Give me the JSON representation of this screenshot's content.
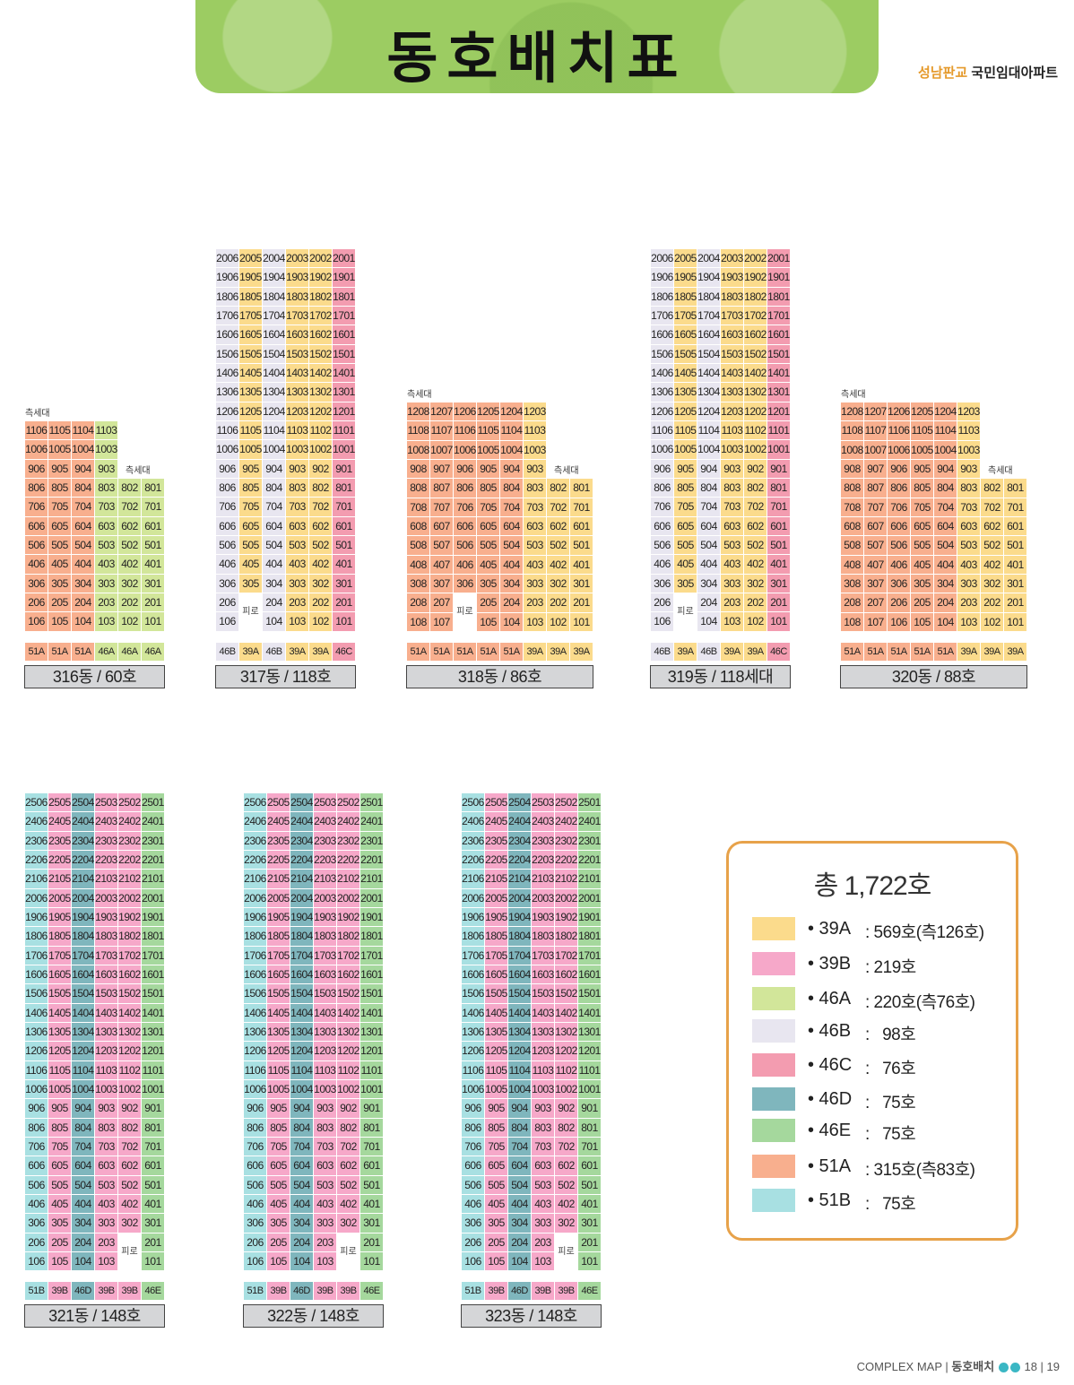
{
  "header": {
    "title": "동호배치표",
    "brand_prefix": "성남판교",
    "brand_suffix": "국민임대아파트"
  },
  "colors": {
    "39A": "#fbdb8c",
    "39B": "#f6a8c9",
    "46A": "#d2e69a",
    "46B": "#e8e6f0",
    "46C": "#f39cb0",
    "46D": "#7fb6bd",
    "46E": "#a5d89d",
    "51A": "#f8af8e",
    "51B": "#a8e0e2"
  },
  "labels": {
    "side_unit": "측세대",
    "piloti": "피로티"
  },
  "buildings": [
    {
      "name": "316동 / 60호",
      "bottom_types": [
        "51A",
        "51A",
        "51A",
        "46A",
        "46A",
        "46A"
      ],
      "column_types": [
        "51A",
        "51A",
        "51A",
        "46A",
        "46A",
        "46A"
      ],
      "rows": [
        [
          "1106",
          "1105",
          "1104",
          "1103",
          "",
          ""
        ],
        [
          "1006",
          "1005",
          "1004",
          "1003",
          "",
          ""
        ],
        [
          "906",
          "905",
          "904",
          "903",
          "",
          ""
        ],
        [
          "806",
          "805",
          "804",
          "803",
          "802",
          "801"
        ],
        [
          "706",
          "705",
          "704",
          "703",
          "702",
          "701"
        ],
        [
          "606",
          "605",
          "604",
          "603",
          "602",
          "601"
        ],
        [
          "506",
          "505",
          "504",
          "503",
          "502",
          "501"
        ],
        [
          "406",
          "405",
          "404",
          "403",
          "402",
          "401"
        ],
        [
          "306",
          "305",
          "304",
          "303",
          "302",
          "301"
        ],
        [
          "206",
          "205",
          "204",
          "203",
          "202",
          "201"
        ],
        [
          "106",
          "105",
          "104",
          "103",
          "102",
          "101"
        ]
      ]
    },
    {
      "name": "317동 / 118호",
      "bottom_types": [
        "46B",
        "39A",
        "46B",
        "39A",
        "39A",
        "46C"
      ],
      "column_types": [
        "46B",
        "39A",
        "46B",
        "39A",
        "39A",
        "46C"
      ],
      "rows": [
        [
          "2006",
          "2005",
          "2004",
          "2003",
          "2002",
          "2001"
        ],
        [
          "1906",
          "1905",
          "1904",
          "1903",
          "1902",
          "1901"
        ],
        [
          "1806",
          "1805",
          "1804",
          "1803",
          "1802",
          "1801"
        ],
        [
          "1706",
          "1705",
          "1704",
          "1703",
          "1702",
          "1701"
        ],
        [
          "1606",
          "1605",
          "1604",
          "1603",
          "1602",
          "1601"
        ],
        [
          "1506",
          "1505",
          "1504",
          "1503",
          "1502",
          "1501"
        ],
        [
          "1406",
          "1405",
          "1404",
          "1403",
          "1402",
          "1401"
        ],
        [
          "1306",
          "1305",
          "1304",
          "1303",
          "1302",
          "1301"
        ],
        [
          "1206",
          "1205",
          "1204",
          "1203",
          "1202",
          "1201"
        ],
        [
          "1106",
          "1105",
          "1104",
          "1103",
          "1102",
          "1101"
        ],
        [
          "1006",
          "1005",
          "1004",
          "1003",
          "1002",
          "1001"
        ],
        [
          "906",
          "905",
          "904",
          "903",
          "902",
          "901"
        ],
        [
          "806",
          "805",
          "804",
          "803",
          "802",
          "801"
        ],
        [
          "706",
          "705",
          "704",
          "703",
          "702",
          "701"
        ],
        [
          "606",
          "605",
          "604",
          "603",
          "602",
          "601"
        ],
        [
          "506",
          "505",
          "504",
          "503",
          "502",
          "501"
        ],
        [
          "406",
          "405",
          "404",
          "403",
          "402",
          "401"
        ],
        [
          "306",
          "305",
          "304",
          "303",
          "302",
          "301"
        ],
        [
          "206",
          "",
          "204",
          "203",
          "202",
          "201"
        ],
        [
          "106",
          "",
          "104",
          "103",
          "102",
          "101"
        ]
      ]
    },
    {
      "name": "318동 / 86호",
      "bottom_types": [
        "51A",
        "51A",
        "51A",
        "51A",
        "51A",
        "39A",
        "39A",
        "39A"
      ],
      "column_types": [
        "51A",
        "51A",
        "51A",
        "51A",
        "51A",
        "39A",
        "39A",
        "39A"
      ],
      "rows": [
        [
          "1208",
          "1207",
          "1206",
          "1205",
          "1204",
          "1203",
          "",
          ""
        ],
        [
          "1108",
          "1107",
          "1106",
          "1105",
          "1104",
          "1103",
          "",
          ""
        ],
        [
          "1008",
          "1007",
          "1006",
          "1005",
          "1004",
          "1003",
          "",
          ""
        ],
        [
          "908",
          "907",
          "906",
          "905",
          "904",
          "903",
          "",
          ""
        ],
        [
          "808",
          "807",
          "806",
          "805",
          "804",
          "803",
          "802",
          "801"
        ],
        [
          "708",
          "707",
          "706",
          "705",
          "704",
          "703",
          "702",
          "701"
        ],
        [
          "608",
          "607",
          "606",
          "605",
          "604",
          "603",
          "602",
          "601"
        ],
        [
          "508",
          "507",
          "506",
          "505",
          "504",
          "503",
          "502",
          "501"
        ],
        [
          "408",
          "407",
          "406",
          "405",
          "404",
          "403",
          "402",
          "401"
        ],
        [
          "308",
          "307",
          "306",
          "305",
          "304",
          "303",
          "302",
          "301"
        ],
        [
          "208",
          "207",
          "",
          "205",
          "204",
          "203",
          "202",
          "201"
        ],
        [
          "108",
          "107",
          "",
          "105",
          "104",
          "103",
          "102",
          "101"
        ]
      ]
    },
    {
      "name": "319동 / 118세대",
      "bottom_types": [
        "46B",
        "39A",
        "46B",
        "39A",
        "39A",
        "46C"
      ],
      "column_types": [
        "46B",
        "39A",
        "46B",
        "39A",
        "39A",
        "46C"
      ],
      "rows": [
        [
          "2006",
          "2005",
          "2004",
          "2003",
          "2002",
          "2001"
        ],
        [
          "1906",
          "1905",
          "1904",
          "1903",
          "1902",
          "1901"
        ],
        [
          "1806",
          "1805",
          "1804",
          "1803",
          "1802",
          "1801"
        ],
        [
          "1706",
          "1705",
          "1704",
          "1703",
          "1702",
          "1701"
        ],
        [
          "1606",
          "1605",
          "1604",
          "1603",
          "1602",
          "1601"
        ],
        [
          "1506",
          "1505",
          "1504",
          "1503",
          "1502",
          "1501"
        ],
        [
          "1406",
          "1405",
          "1404",
          "1403",
          "1402",
          "1401"
        ],
        [
          "1306",
          "1305",
          "1304",
          "1303",
          "1302",
          "1301"
        ],
        [
          "1206",
          "1205",
          "1204",
          "1203",
          "1202",
          "1201"
        ],
        [
          "1106",
          "1105",
          "1104",
          "1103",
          "1102",
          "1101"
        ],
        [
          "1006",
          "1005",
          "1004",
          "1003",
          "1002",
          "1001"
        ],
        [
          "906",
          "905",
          "904",
          "903",
          "902",
          "901"
        ],
        [
          "806",
          "805",
          "804",
          "803",
          "802",
          "801"
        ],
        [
          "706",
          "705",
          "704",
          "703",
          "702",
          "701"
        ],
        [
          "606",
          "605",
          "604",
          "603",
          "602",
          "601"
        ],
        [
          "506",
          "505",
          "504",
          "503",
          "502",
          "501"
        ],
        [
          "406",
          "405",
          "404",
          "403",
          "402",
          "401"
        ],
        [
          "306",
          "305",
          "304",
          "303",
          "302",
          "301"
        ],
        [
          "206",
          "",
          "204",
          "203",
          "202",
          "201"
        ],
        [
          "106",
          "",
          "104",
          "103",
          "102",
          "101"
        ]
      ]
    },
    {
      "name": "320동 / 88호",
      "bottom_types": [
        "51A",
        "51A",
        "51A",
        "51A",
        "51A",
        "39A",
        "39A",
        "39A"
      ],
      "column_types": [
        "51A",
        "51A",
        "51A",
        "51A",
        "51A",
        "39A",
        "39A",
        "39A"
      ],
      "rows": [
        [
          "1208",
          "1207",
          "1206",
          "1205",
          "1204",
          "1203",
          "",
          ""
        ],
        [
          "1108",
          "1107",
          "1106",
          "1105",
          "1104",
          "1103",
          "",
          ""
        ],
        [
          "1008",
          "1007",
          "1006",
          "1005",
          "1004",
          "1003",
          "",
          ""
        ],
        [
          "908",
          "907",
          "906",
          "905",
          "904",
          "903",
          "",
          ""
        ],
        [
          "808",
          "807",
          "806",
          "805",
          "804",
          "803",
          "802",
          "801"
        ],
        [
          "708",
          "707",
          "706",
          "705",
          "704",
          "703",
          "702",
          "701"
        ],
        [
          "608",
          "607",
          "606",
          "605",
          "604",
          "603",
          "602",
          "601"
        ],
        [
          "508",
          "507",
          "506",
          "505",
          "504",
          "503",
          "502",
          "501"
        ],
        [
          "408",
          "407",
          "406",
          "405",
          "404",
          "403",
          "402",
          "401"
        ],
        [
          "308",
          "307",
          "306",
          "305",
          "304",
          "303",
          "302",
          "301"
        ],
        [
          "208",
          "207",
          "206",
          "205",
          "204",
          "203",
          "202",
          "201"
        ],
        [
          "108",
          "107",
          "106",
          "105",
          "104",
          "103",
          "102",
          "101"
        ]
      ]
    },
    {
      "name": "321동 / 148호",
      "bottom_types": [
        "51B",
        "39B",
        "46D",
        "39B",
        "39B",
        "46E"
      ],
      "column_types": [
        "51B",
        "39B",
        "46D",
        "39B",
        "39B",
        "46E"
      ],
      "floors_top": 25
    },
    {
      "name": "322동 / 148호",
      "bottom_types": [
        "51B",
        "39B",
        "46D",
        "39B",
        "39B",
        "46E"
      ],
      "column_types": [
        "51B",
        "39B",
        "46D",
        "39B",
        "39B",
        "46E"
      ],
      "floors_top": 25
    },
    {
      "name": "323동 / 148호",
      "bottom_types": [
        "51B",
        "39B",
        "46D",
        "39B",
        "39B",
        "46E"
      ],
      "column_types": [
        "51B",
        "39B",
        "46D",
        "39B",
        "39B",
        "46E"
      ],
      "floors_top": 25
    }
  ],
  "legend": {
    "title": "총 1,722호",
    "items": [
      {
        "code": "• 39A",
        "value": ": 569호(측126호)",
        "type": "39A"
      },
      {
        "code": "• 39B",
        "value": ": 219호",
        "type": "39B"
      },
      {
        "code": "• 46A",
        "value": ": 220호(측76호)",
        "type": "46A"
      },
      {
        "code": "• 46B",
        "value": ":   98호",
        "type": "46B"
      },
      {
        "code": "• 46C",
        "value": ":   76호",
        "type": "46C"
      },
      {
        "code": "• 46D",
        "value": ":   75호",
        "type": "46D"
      },
      {
        "code": "• 46E",
        "value": ":   75호",
        "type": "46E"
      },
      {
        "code": "• 51A",
        "value": ": 315호(측83호)",
        "type": "51A"
      },
      {
        "code": "• 51B",
        "value": ":   75호",
        "type": "51B"
      }
    ]
  },
  "footer": {
    "section": "COMPLEX MAP",
    "subsection": "동호배치",
    "pages": "18 | 19"
  }
}
